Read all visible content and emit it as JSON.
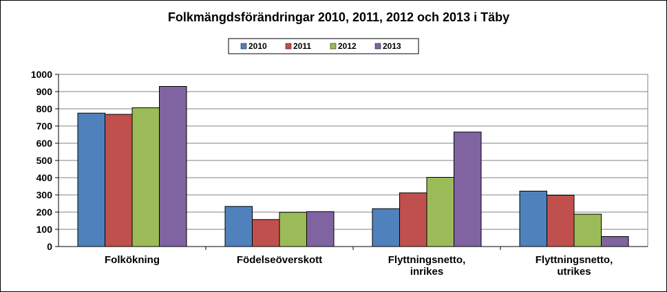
{
  "chart_data": {
    "type": "bar",
    "title": "Folkmängdsförändringar 2010, 2011, 2012 och 2013 i Täby",
    "categories": [
      [
        "Folkökning"
      ],
      [
        "Födelseöverskott"
      ],
      [
        "Flyttningsnetto,",
        "inrikes"
      ],
      [
        "Flyttningsnetto,",
        "utrikes"
      ]
    ],
    "series": [
      {
        "name": "2010",
        "color": "#4F81BD",
        "values": [
          775,
          233,
          220,
          322
        ]
      },
      {
        "name": "2011",
        "color": "#C0504D",
        "values": [
          768,
          157,
          312,
          298
        ]
      },
      {
        "name": "2012",
        "color": "#9BBB59",
        "values": [
          806,
          199,
          402,
          188
        ]
      },
      {
        "name": "2013",
        "color": "#8064A2",
        "values": [
          930,
          203,
          665,
          58
        ]
      }
    ],
    "ylim": [
      0,
      1000
    ],
    "yticks": [
      0,
      100,
      200,
      300,
      400,
      500,
      600,
      700,
      800,
      900,
      1000
    ],
    "grid": true,
    "legend_position": "top-center"
  }
}
